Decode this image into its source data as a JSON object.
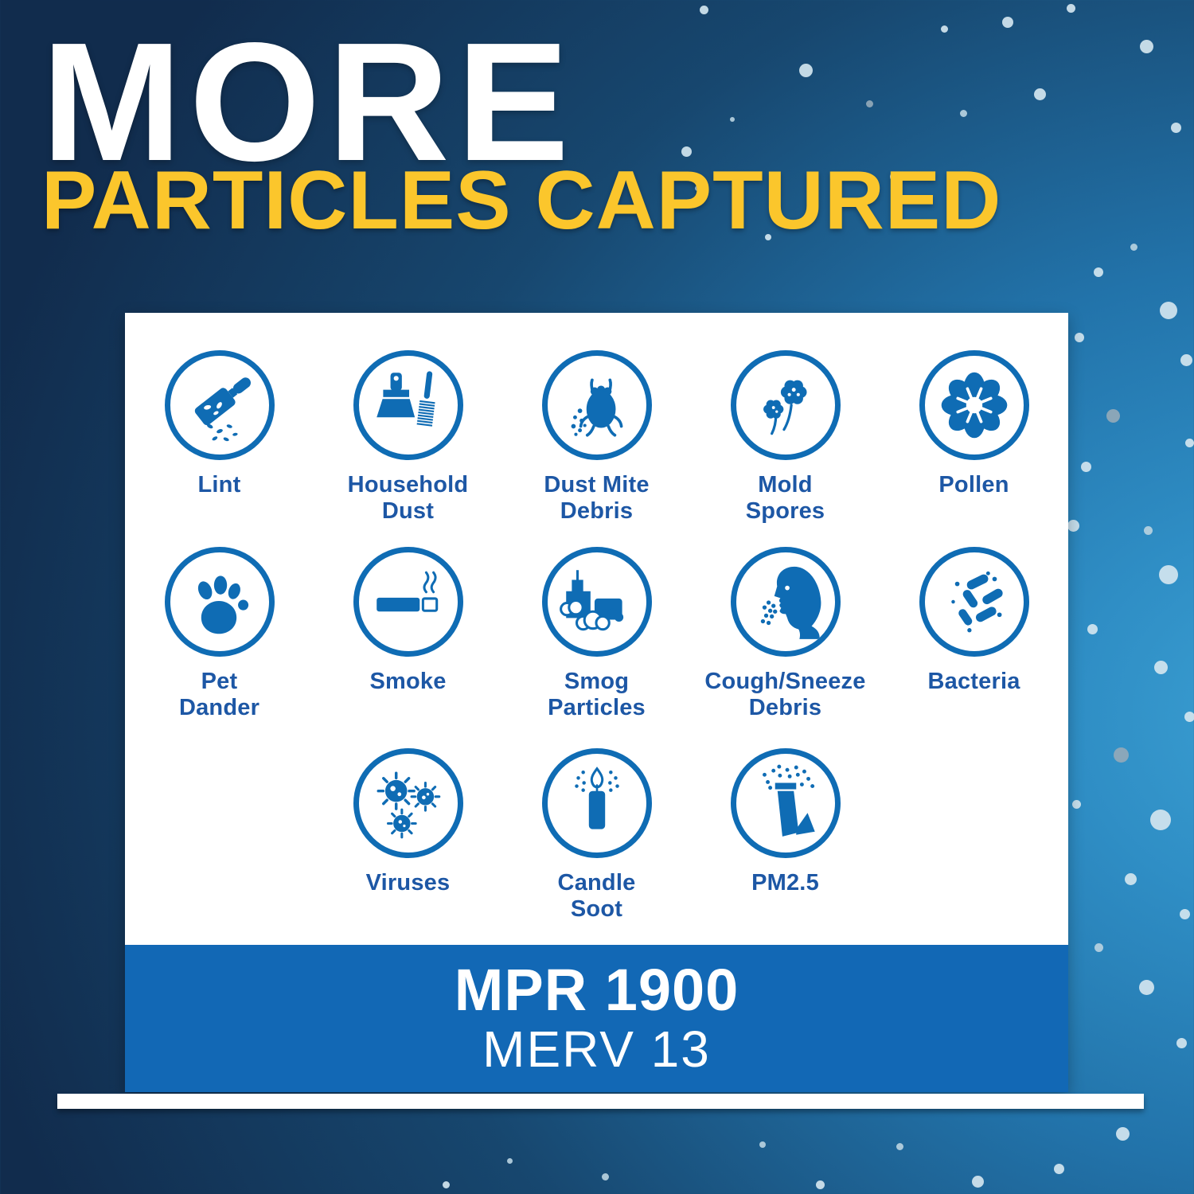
{
  "title": {
    "line1": "MORE",
    "line2": "PARTICLES CAPTURED"
  },
  "colors": {
    "icon-blue": "#0f6cb4",
    "label-blue": "#1d57a5",
    "bar-blue": "#1268b5",
    "title-yellow": "#fbc62c",
    "title-white": "#ffffff"
  },
  "card": {
    "rows": [
      {
        "items": [
          {
            "label": "Lint",
            "icon": "lint-roller"
          },
          {
            "label": "Household\nDust",
            "icon": "dustpan-brush"
          },
          {
            "label": "Dust Mite\nDebris",
            "icon": "dust-mite"
          },
          {
            "label": "Mold\nSpores",
            "icon": "mold-spores"
          },
          {
            "label": "Pollen",
            "icon": "pollen-flower"
          }
        ]
      },
      {
        "items": [
          {
            "label": "Pet\nDander",
            "icon": "paw-print"
          },
          {
            "label": "Smoke",
            "icon": "cigarette"
          },
          {
            "label": "Smog\nParticles",
            "icon": "city-smog"
          },
          {
            "label": "Cough/Sneeze\nDebris",
            "icon": "sneezing-face"
          },
          {
            "label": "Bacteria",
            "icon": "bacteria"
          }
        ]
      },
      {
        "items": [
          {
            "label": "Viruses",
            "icon": "virus"
          },
          {
            "label": "Candle\nSoot",
            "icon": "candle"
          },
          {
            "label": "PM2.5",
            "icon": "smokestack"
          }
        ]
      }
    ],
    "rating": {
      "mpr": "MPR 1900",
      "merv": "MERV 13"
    }
  }
}
